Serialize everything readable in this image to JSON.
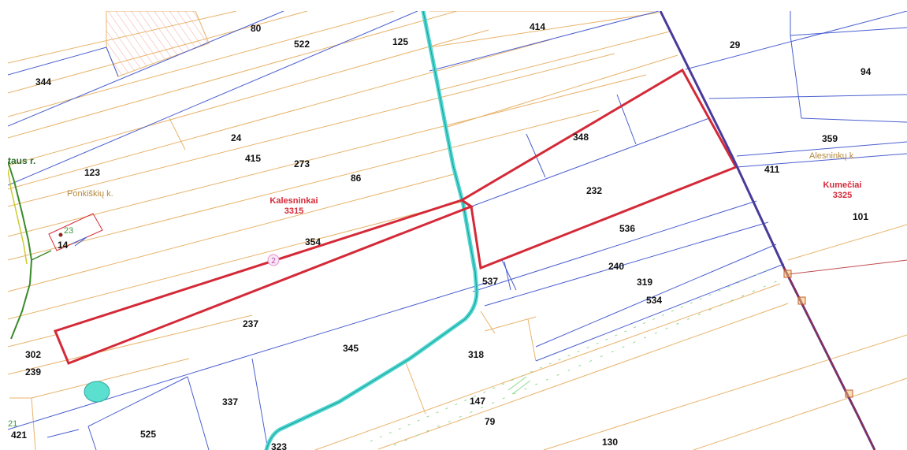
{
  "colors": {
    "background": "#ffffff",
    "parcel_line": "#4a5fd0",
    "contour_line": "#e8b36a",
    "highlight": "#d42a38",
    "road": "#4fd6d0",
    "boundary": "#4a3a9a",
    "green_line": "#3a8a2a",
    "place_label": "#b58a40",
    "green_label": "#2e6b2e",
    "area_label": "#d42a38"
  },
  "parcels": [
    {
      "id": "344",
      "label": "344"
    },
    {
      "id": "80",
      "label": "80"
    },
    {
      "id": "522",
      "label": "522"
    },
    {
      "id": "125",
      "label": "125"
    },
    {
      "id": "414",
      "label": "414"
    },
    {
      "id": "29",
      "label": "29"
    },
    {
      "id": "94",
      "label": "94"
    },
    {
      "id": "24",
      "label": "24"
    },
    {
      "id": "415",
      "label": "415"
    },
    {
      "id": "273",
      "label": "273"
    },
    {
      "id": "86",
      "label": "86"
    },
    {
      "id": "123",
      "label": "123"
    },
    {
      "id": "348",
      "label": "348"
    },
    {
      "id": "232",
      "label": "232"
    },
    {
      "id": "359",
      "label": "359"
    },
    {
      "id": "411",
      "label": "411"
    },
    {
      "id": "101",
      "label": "101"
    },
    {
      "id": "14",
      "label": "14"
    },
    {
      "id": "354",
      "label": "354"
    },
    {
      "id": "536",
      "label": "536"
    },
    {
      "id": "537",
      "label": "537"
    },
    {
      "id": "240",
      "label": "240"
    },
    {
      "id": "319",
      "label": "319"
    },
    {
      "id": "534",
      "label": "534"
    },
    {
      "id": "237",
      "label": "237"
    },
    {
      "id": "302",
      "label": "302"
    },
    {
      "id": "239",
      "label": "239"
    },
    {
      "id": "345",
      "label": "345"
    },
    {
      "id": "318",
      "label": "318"
    },
    {
      "id": "337",
      "label": "337"
    },
    {
      "id": "147",
      "label": "147"
    },
    {
      "id": "79",
      "label": "79"
    },
    {
      "id": "525",
      "label": "525"
    },
    {
      "id": "421",
      "label": "421"
    },
    {
      "id": "323",
      "label": "323"
    },
    {
      "id": "130",
      "label": "130"
    }
  ],
  "places": {
    "ponkiskiu": "Ponkiškių k.",
    "alesninku": "Alesninkų k.",
    "river": "taus r."
  },
  "cadastral_areas": {
    "kalesninkai": {
      "name": "Kalesninkai",
      "code": "3315"
    },
    "kumeciai": {
      "name": "Kumečiai",
      "code": "3325"
    }
  },
  "markers": {
    "circle_label": "2",
    "green_23": "23",
    "green_21": "21"
  }
}
